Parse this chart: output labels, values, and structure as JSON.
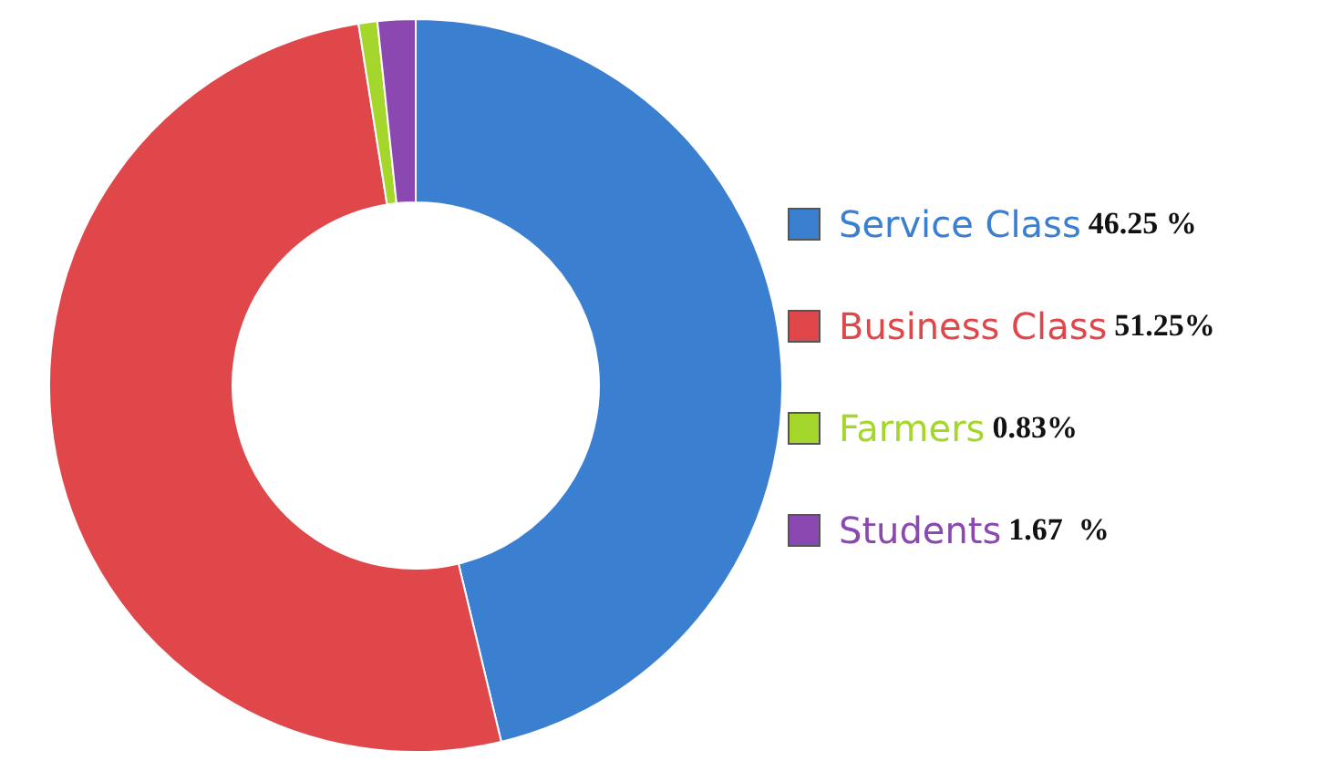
{
  "chart_data": {
    "type": "donut",
    "categories": [
      "Service Class",
      "Business Class",
      "Farmers",
      "Students"
    ],
    "values": [
      46.25,
      51.25,
      0.83,
      1.67
    ],
    "value_labels": [
      "46.25 %",
      "51.25%",
      "0.83%",
      "1.67  %"
    ],
    "colors": [
      "#3b7fd1",
      "#e0474a",
      "#a5d62b",
      "#8a48b0"
    ],
    "legend": "right"
  }
}
